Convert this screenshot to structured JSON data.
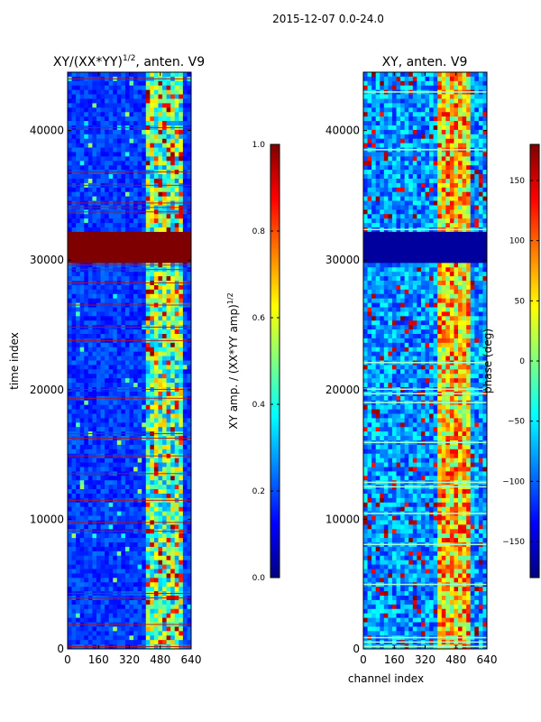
{
  "figure": {
    "suptitle": "2015-12-07 0.0-24.0"
  },
  "colors": {
    "jet": [
      "#00007f",
      "#0000ff",
      "#007fff",
      "#00ffff",
      "#7fff7f",
      "#ffff00",
      "#ff7f00",
      "#ff0000",
      "#7f0000"
    ],
    "frame": "#000000",
    "background": "#ffffff"
  },
  "chart_data": [
    {
      "type": "heatmap",
      "title": "XY/(XX*YY)^(1/2), anten. V9",
      "title_main": "XY/(XX*YY)",
      "title_sup": "1/2",
      "title_tail": ", anten. V9",
      "xlabel": "",
      "ylabel": "time index",
      "xlim": [
        0,
        640
      ],
      "ylim": [
        0,
        44500
      ],
      "xticks": [
        0,
        160,
        320,
        480,
        640
      ],
      "yticks": [
        0,
        10000,
        20000,
        30000,
        40000
      ],
      "xtick_labels": [
        "0",
        "160",
        "320",
        "480",
        "640"
      ],
      "ytick_labels": [
        "0",
        "10000",
        "20000",
        "30000",
        "40000"
      ],
      "colormap": "jet",
      "saturated_time_band": [
        29700,
        32200
      ],
      "bright_channel_band": [
        400,
        600
      ],
      "colorbar": {
        "label": "XY amp. / (XX*YY amp)^(1/2)",
        "label_main": "XY amp. / (XX*YY amp)",
        "label_sup": "1/2",
        "vmin": 0.0,
        "vmax": 1.0,
        "ticks": [
          0.0,
          0.2,
          0.4,
          0.6,
          0.8,
          1.0
        ],
        "tick_labels": [
          "0.0",
          "0.2",
          "0.4",
          "0.6",
          "0.8",
          "1.0"
        ]
      }
    },
    {
      "type": "heatmap",
      "title": "XY, anten. V9",
      "xlabel": "channel index",
      "ylabel": "",
      "xlim": [
        0,
        640
      ],
      "ylim": [
        0,
        44500
      ],
      "xticks": [
        0,
        160,
        320,
        480,
        640
      ],
      "yticks": [
        0,
        10000,
        20000,
        30000,
        40000
      ],
      "xtick_labels": [
        "0",
        "160",
        "320",
        "480",
        "640"
      ],
      "ytick_labels": [
        "0",
        "10000",
        "20000",
        "30000",
        "40000"
      ],
      "colormap": "jet",
      "saturated_time_band": [
        29700,
        32200
      ],
      "colorbar": {
        "label": "phase (deg)",
        "vmin": -180,
        "vmax": 180,
        "ticks": [
          -150,
          -100,
          -50,
          0,
          50,
          100,
          150
        ],
        "tick_labels": [
          "−150",
          "−100",
          "−50",
          "0",
          "50",
          "100",
          "150"
        ]
      }
    }
  ]
}
